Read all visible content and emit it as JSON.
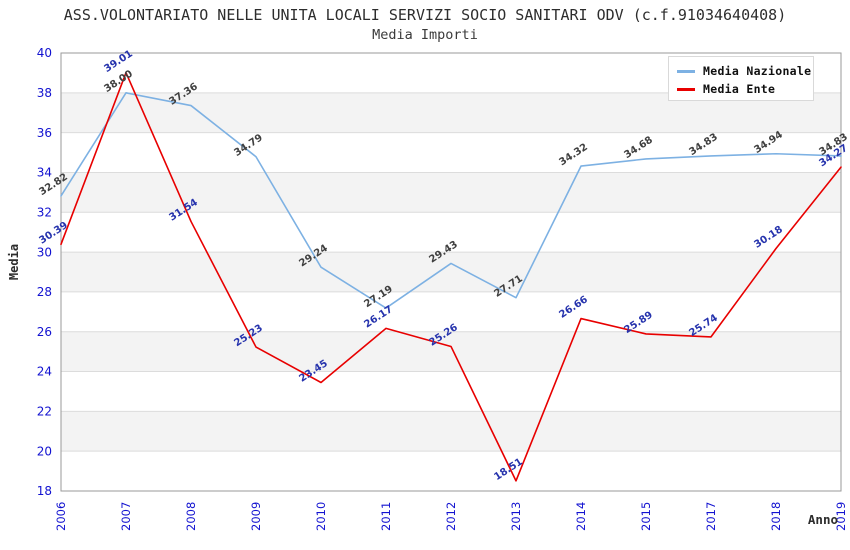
{
  "header": {
    "title": "ASS.VOLONTARIATO NELLE UNITA LOCALI SERVIZI SOCIO SANITARI ODV (c.f.91034640408)",
    "subtitle": "Media Importi"
  },
  "axes": {
    "y_title": "Media",
    "x_title": "Anno"
  },
  "legend": {
    "items": [
      {
        "label": "Media Nazionale",
        "color": "#7db1e3"
      },
      {
        "label": "Media Ente",
        "color": "#e80000"
      }
    ]
  },
  "colors": {
    "tick_label_blue": "#1212d0",
    "band_gray": "#f3f3f3",
    "gridline": "#dcdcdc",
    "plot_border": "#9a9a9a",
    "title_text": "#2d2d2d"
  },
  "chart_data": {
    "type": "line",
    "title": "ASS.VOLONTARIATO NELLE UNITA LOCALI SERVIZI SOCIO SANITARI ODV (c.f.91034640408)",
    "subtitle": "Media Importi",
    "xlabel": "Anno",
    "ylabel": "Media",
    "categories": [
      "2006",
      "2007",
      "2008",
      "2009",
      "2010",
      "2011",
      "2012",
      "2013",
      "2014",
      "2015",
      "2017",
      "2018",
      "2019"
    ],
    "series": [
      {
        "name": "Media Nazionale",
        "color": "#7db1e3",
        "label_color": "#3f3f3f",
        "values": [
          32.82,
          38.0,
          37.36,
          34.79,
          29.24,
          27.19,
          29.43,
          27.71,
          34.32,
          34.68,
          34.83,
          34.94,
          34.83
        ]
      },
      {
        "name": "Media Ente",
        "color": "#e80000",
        "label_color": "#2633ad",
        "values": [
          30.39,
          39.01,
          31.54,
          25.23,
          23.45,
          26.17,
          25.26,
          18.51,
          26.66,
          25.89,
          25.74,
          30.18,
          34.27
        ]
      }
    ],
    "ylim": [
      18,
      40
    ],
    "yticks": [
      18,
      20,
      22,
      24,
      26,
      28,
      30,
      32,
      34,
      36,
      38,
      40
    ],
    "grid": "horizontal gridlines with alternating gray bands",
    "legend_position": "top-right",
    "data_labels": "shown, rotated",
    "x_tick_rotation": -90
  }
}
